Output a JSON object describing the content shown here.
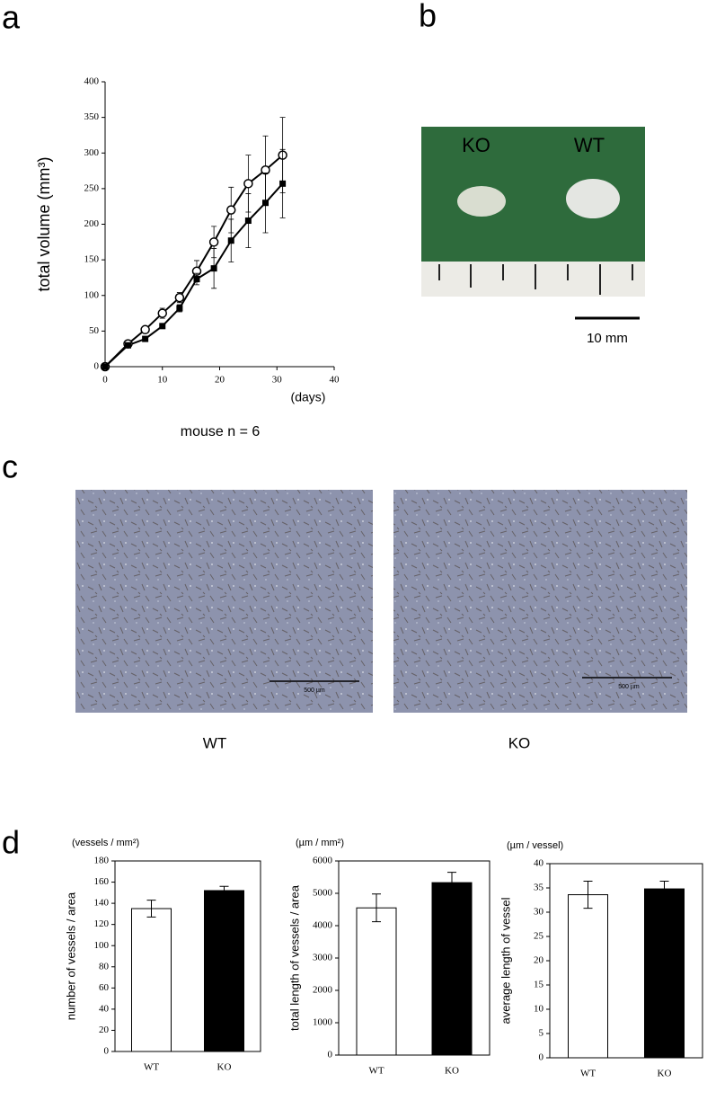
{
  "figure": {
    "panel_labels": [
      "a",
      "b",
      "c",
      "d"
    ],
    "photo_labels": [
      "KO",
      "WT"
    ],
    "photo_scale": "10 mm",
    "micrograph_scales": [
      "500 µm",
      "500 µm"
    ],
    "micrograph_captions": [
      "WT",
      "KO"
    ]
  },
  "chart_data": [
    {
      "type": "line",
      "y_label": "total volume (mm³)",
      "x_label": "(days)",
      "annotation": "mouse n = 6",
      "x": [
        0,
        4,
        7,
        10,
        13,
        16,
        19,
        22,
        25,
        28,
        31
      ],
      "xlim": [
        0,
        40
      ],
      "xticks": [
        0,
        10,
        20,
        30,
        40
      ],
      "ylim": [
        0,
        400
      ],
      "yticks": [
        0,
        50,
        100,
        150,
        200,
        250,
        300,
        350,
        400
      ],
      "series": [
        {
          "color": "#000000",
          "marker": "circle-open",
          "values": [
            0,
            32,
            52,
            75,
            97,
            134,
            175,
            220,
            257,
            276,
            297
          ],
          "errors": [
            0,
            3,
            4,
            7,
            7,
            15,
            22,
            32,
            40,
            48,
            53
          ]
        },
        {
          "color": "#000000",
          "marker": "square-filled",
          "values": [
            0,
            30,
            39,
            57,
            82,
            123,
            138,
            177,
            205,
            230,
            257
          ],
          "errors": [
            0,
            2,
            3,
            3,
            5,
            8,
            28,
            30,
            38,
            42,
            48
          ]
        }
      ]
    },
    {
      "type": "bar",
      "unit_label": "(vessels / mm²)",
      "y_label": "number of vessels / area",
      "categories": [
        "WT",
        "KO"
      ],
      "values": [
        135,
        152
      ],
      "errors": [
        8,
        4
      ],
      "colors": [
        "#ffffff",
        "#000000"
      ],
      "ylim": [
        0,
        180
      ],
      "yticks": [
        0,
        20,
        40,
        60,
        80,
        100,
        120,
        140,
        160,
        180
      ]
    },
    {
      "type": "bar",
      "unit_label": "(µm / mm²)",
      "y_label": "total length of vessels / area",
      "categories": [
        "WT",
        "KO"
      ],
      "values": [
        4550,
        5330
      ],
      "errors": [
        430,
        320
      ],
      "colors": [
        "#ffffff",
        "#000000"
      ],
      "ylim": [
        0,
        6000
      ],
      "yticks": [
        0,
        1000,
        2000,
        3000,
        4000,
        5000,
        6000
      ]
    },
    {
      "type": "bar",
      "unit_label": "(µm / vessel)",
      "y_label": "average length of vessel",
      "categories": [
        "WT",
        "KO"
      ],
      "values": [
        33.6,
        34.8
      ],
      "errors": [
        2.8,
        1.6
      ],
      "colors": [
        "#ffffff",
        "#000000"
      ],
      "ylim": [
        0,
        40
      ],
      "yticks": [
        0,
        5,
        10,
        15,
        20,
        25,
        30,
        35,
        40
      ]
    }
  ]
}
